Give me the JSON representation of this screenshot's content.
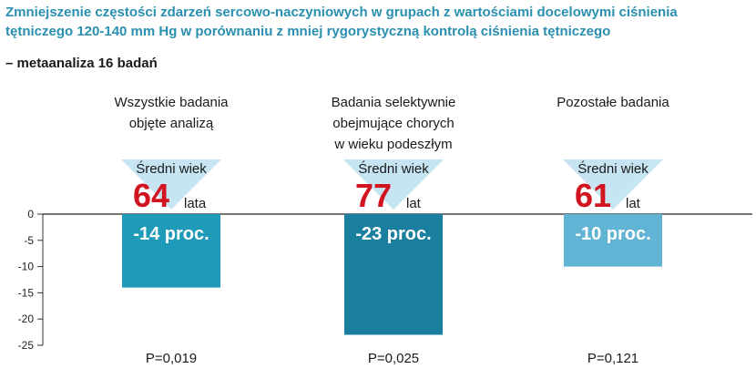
{
  "title_lines": [
    "Zmniejszenie częstości zdarzeń sercowo-naczyniowych w grupach z wartościami docelowymi ciśnienia",
    "tętniczego 120-140 mm Hg w porównaniu z mniej rygorystyczną kontrolą ciśnienia tętniczego"
  ],
  "subtitle": "– metaanaliza 16 badań",
  "colors": {
    "title": "#2a8fb0",
    "bars": [
      "#1f9ab8",
      "#1a7f9e",
      "#62b4d4"
    ],
    "triangle": "#c6e4f1",
    "age": "#d01420",
    "bar_label": "#ffffff"
  },
  "chart_data": {
    "type": "bar",
    "categories": [
      [
        "Wszystkie badania",
        "objęte analizą"
      ],
      [
        "Badania selektywnie",
        "obejmujące chorych",
        "w wieku podeszłym"
      ],
      [
        "Pozostałe badania"
      ]
    ],
    "values": [
      -14,
      -23,
      -10
    ],
    "bar_labels": [
      "-14 proc.",
      "-23 proc.",
      "-10 proc."
    ],
    "mean_age_label": "Średni wiek",
    "mean_age": [
      64,
      77,
      61
    ],
    "age_units": [
      "lata",
      "lat",
      "lat"
    ],
    "p_values": [
      "P=0,019",
      "P=0,025",
      "P=0,121"
    ],
    "yticks": [
      0,
      -5,
      -10,
      -15,
      -20,
      -25
    ],
    "ylim": [
      -25,
      0
    ],
    "grid": false
  }
}
